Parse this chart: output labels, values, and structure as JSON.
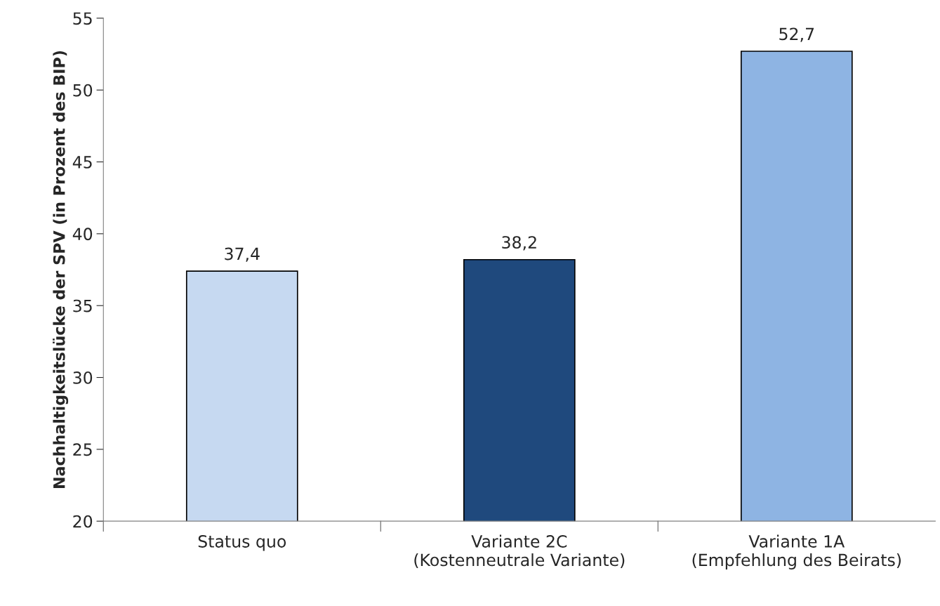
{
  "chart_data": {
    "type": "bar",
    "ylabel": "Nachhaltigkeitslücke der SPV (in Prozent des BIP)",
    "categories": [
      "Status quo",
      "Variante 2C\n(Kostenneutrale Variante)",
      "Variante 1A\n(Empfehlung des Beirats)"
    ],
    "values": [
      37.4,
      38.2,
      52.7
    ],
    "colors": [
      "#c6d9f1",
      "#1f497d",
      "#8eb4e3"
    ],
    "value_labels": [
      "37,4",
      "38,2",
      "52,7"
    ],
    "ylim": [
      20,
      55
    ],
    "yticks": [
      20,
      25,
      30,
      35,
      40,
      45,
      50,
      55
    ],
    "grid": false
  }
}
